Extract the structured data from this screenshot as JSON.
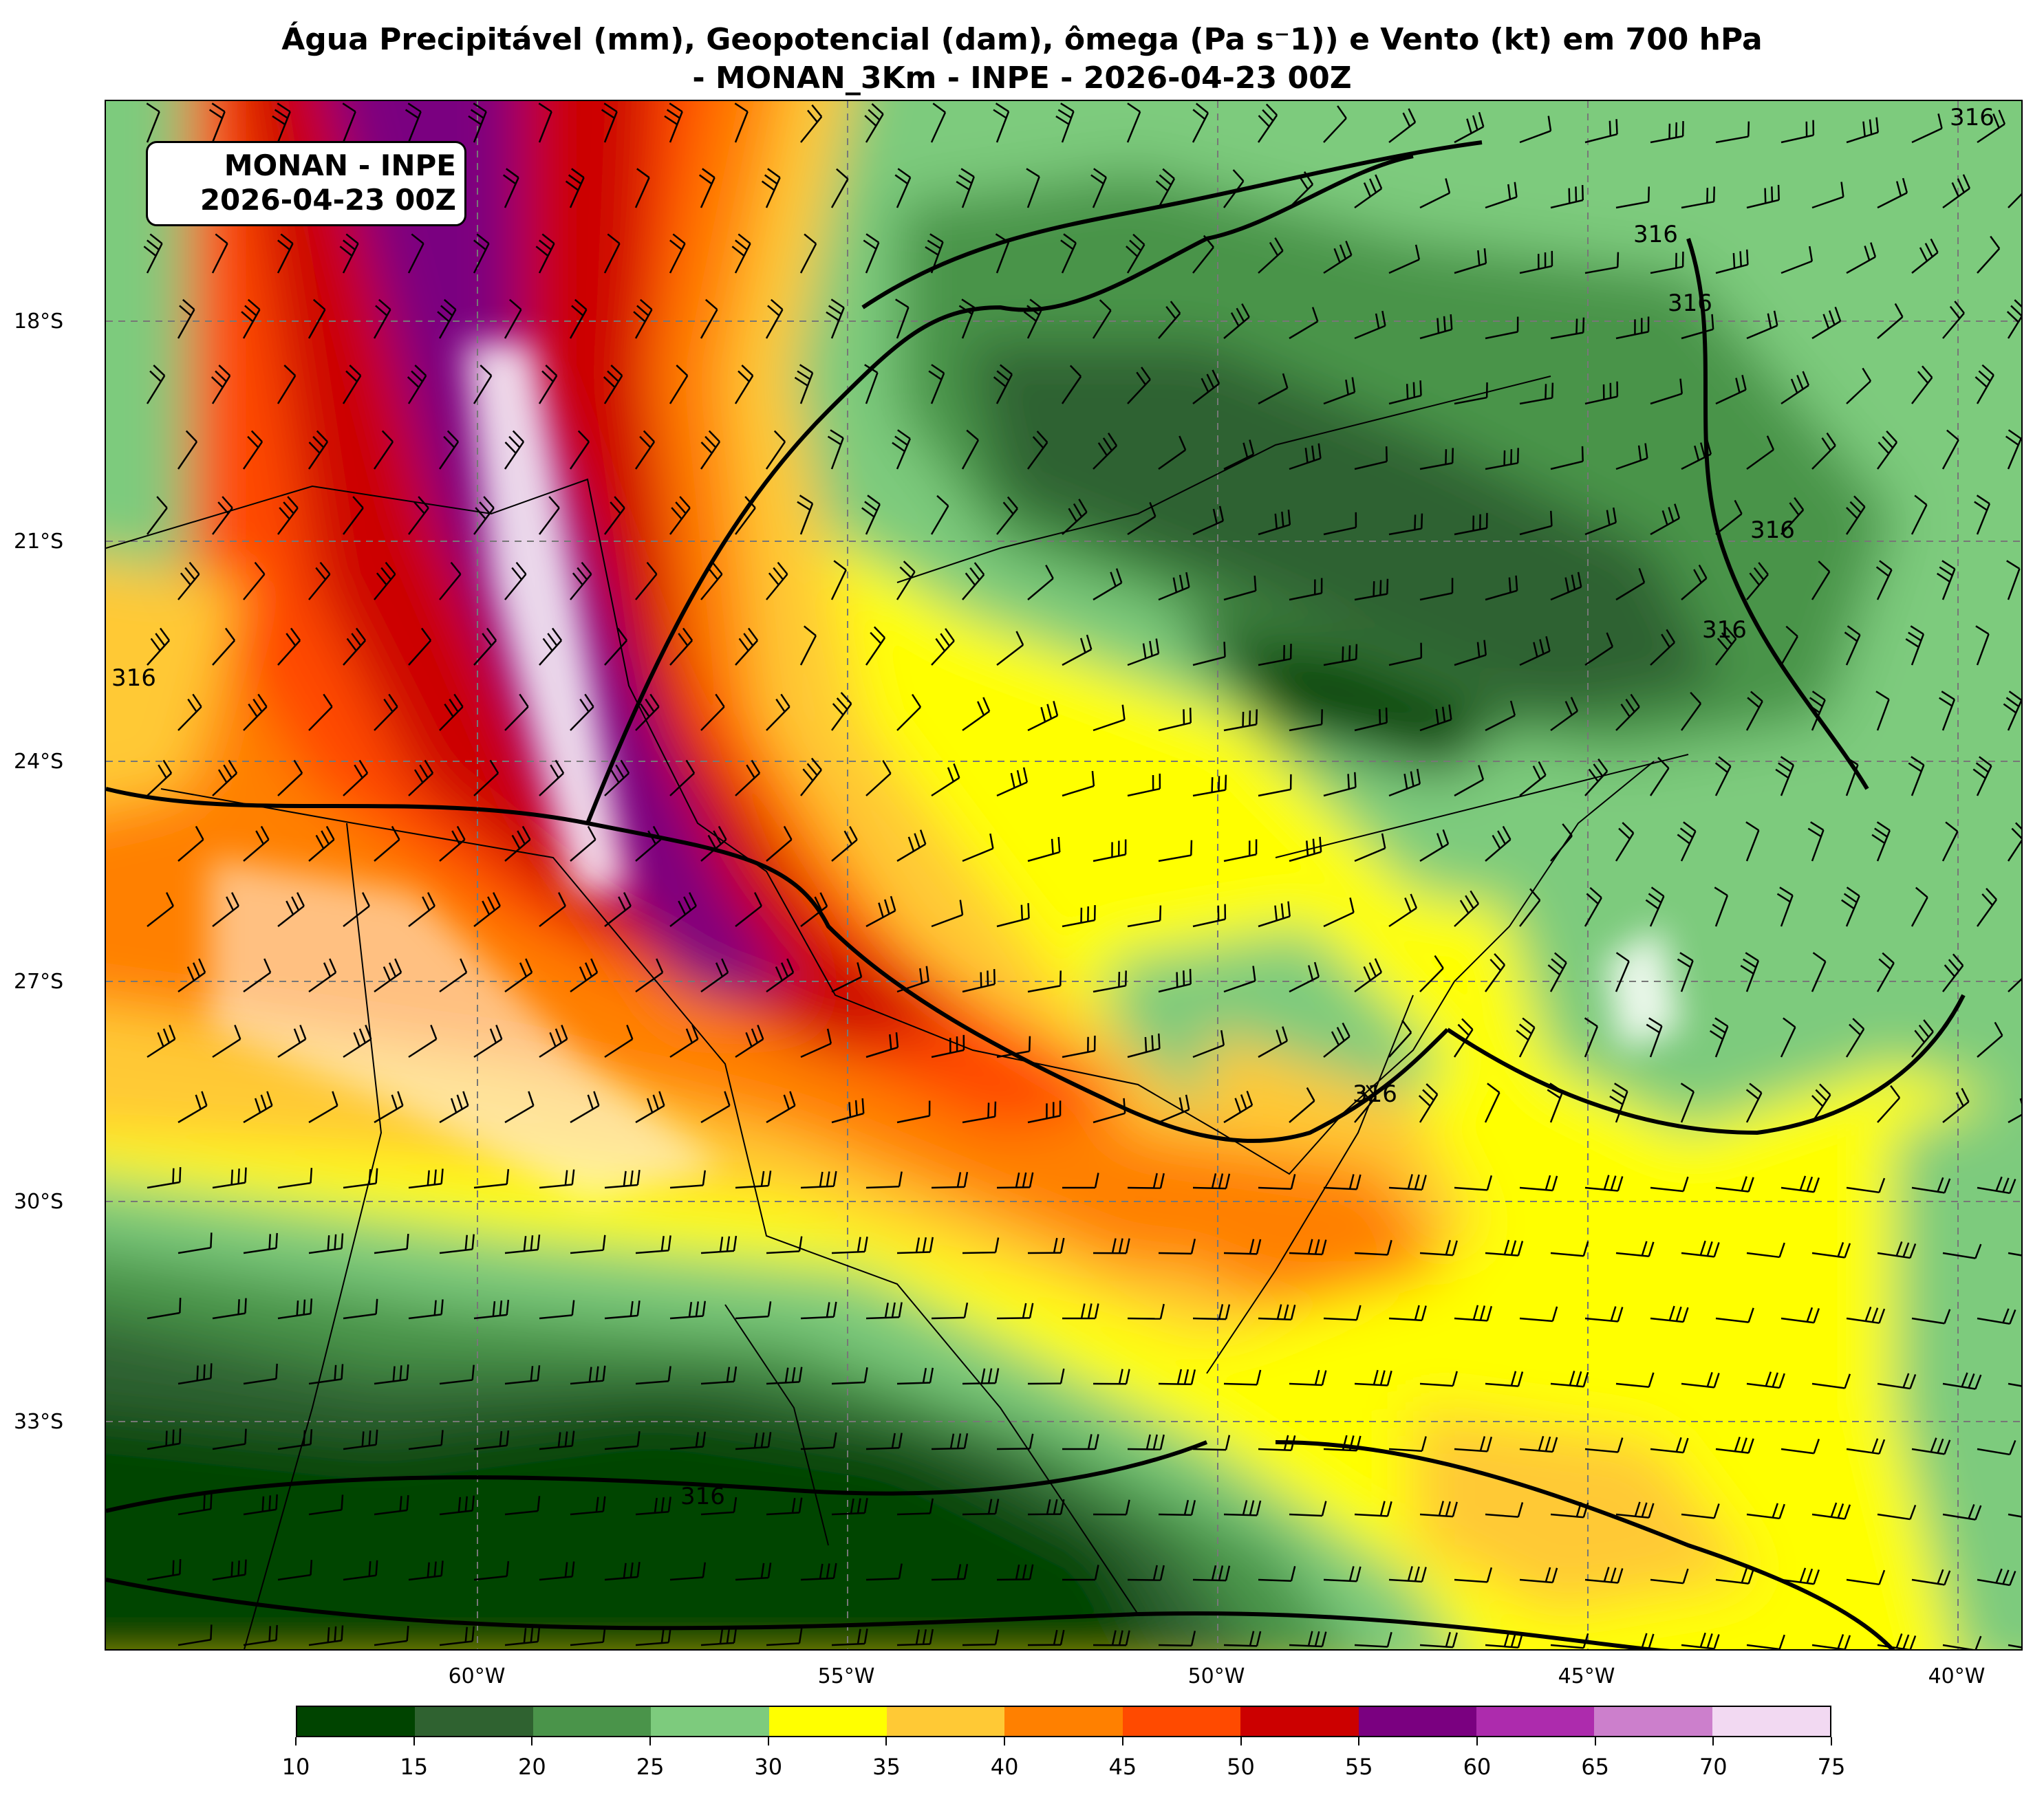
{
  "title": {
    "line1": "Água Precipitável (mm), Geopotencial (dam), ômega (Pa s⁻1)) e Vento (kt) em 700 hPa",
    "line2": "- MONAN_3Km - INPE - 2026-04-23 00Z"
  },
  "info_box": {
    "line1": "MONAN - INPE",
    "line2": "2026-04-23 00Z"
  },
  "latitude_labels": [
    "18°S",
    "21°S",
    "24°S",
    "27°S",
    "30°S",
    "33°S"
  ],
  "longitude_labels": [
    "60°W",
    "55°W",
    "50°W",
    "45°W",
    "40°W"
  ],
  "contour_labels": [
    "316",
    "316",
    "316",
    "316",
    "316",
    "316",
    "316",
    "316"
  ],
  "colorbar": {
    "ticks": [
      "10",
      "15",
      "20",
      "25",
      "30",
      "35",
      "40",
      "45",
      "50",
      "55",
      "60",
      "65",
      "70",
      "75"
    ],
    "colors": [
      "#004400",
      "#2f6230",
      "#4a944a",
      "#7dcb7d",
      "#ffff00",
      "#ffc935",
      "#ff8000",
      "#ff4a00",
      "#cc0000",
      "#7a0080",
      "#ad2bad",
      "#cc7fcc",
      "#f2d9f2"
    ]
  }
}
